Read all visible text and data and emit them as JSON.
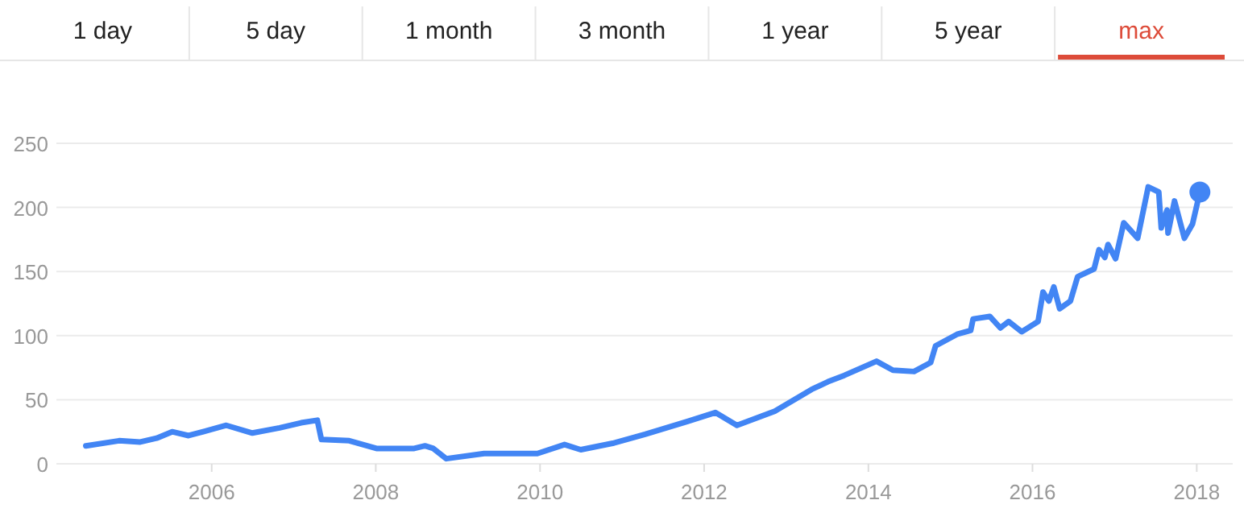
{
  "chart_data": {
    "type": "line",
    "x": [
      "2004-06-20",
      "2004-11-15",
      "2005-02-17",
      "2005-05-01",
      "2005-07-09",
      "2005-09-20",
      "2006-03-07",
      "2006-07-01",
      "2006-10-30",
      "2007-02-03",
      "2007-04-16",
      "2007-05-04",
      "2007-09-05",
      "2008-01-04",
      "2008-06-20",
      "2008-08-07",
      "2008-09-13",
      "2008-11-10",
      "2009-04-27",
      "2009-12-20",
      "2010-04-20",
      "2010-07-01",
      "2010-11-20",
      "2011-04-13",
      "2011-10-19",
      "2012-02-20",
      "2012-05-26",
      "2012-11-10",
      "2013-04-23",
      "2013-07-05",
      "2013-09-16",
      "2014-02-06",
      "2014-04-20",
      "2014-07-23",
      "2014-10-05",
      "2014-10-27",
      "2015-01-30",
      "2015-04-01",
      "2015-04-12",
      "2015-06-25",
      "2015-08-11",
      "2015-09-17",
      "2015-11-14",
      "2016-01-26",
      "2016-02-17",
      "2016-03-14",
      "2016-04-05",
      "2016-05-01",
      "2016-06-18",
      "2016-07-20",
      "2016-10-01",
      "2016-10-23",
      "2016-11-18",
      "2016-12-02",
      "2017-01-05",
      "2017-02-10",
      "2017-04-13",
      "2017-05-30",
      "2017-07-16",
      "2017-07-27",
      "2017-08-22",
      "2017-08-26",
      "2017-09-24",
      "2017-11-07",
      "2017-12-13",
      "2018-01-15"
    ],
    "series": [
      {
        "color": "#4285f4",
        "marker": "none",
        "values": [
          14,
          18,
          17,
          20,
          25,
          22,
          30,
          24,
          28,
          32,
          34,
          19,
          18,
          12,
          12,
          14,
          12,
          4,
          8,
          8,
          15,
          11,
          16,
          23,
          33,
          40,
          30,
          41,
          58,
          64,
          69,
          80,
          73,
          72,
          79,
          92,
          101,
          104,
          113,
          115,
          106,
          111,
          103,
          111,
          134,
          127,
          138,
          121,
          127,
          146,
          152,
          167,
          161,
          171,
          160,
          188,
          176,
          216,
          212,
          184,
          198,
          180,
          205,
          176,
          187,
          212
        ]
      },
      {
        "type": "scatter",
        "color": "#4285f4",
        "marker": "circle",
        "x": [
          "2018-01-15"
        ],
        "values": [
          212
        ]
      }
    ],
    "xlim": [
      "2004-02-10",
      "2018-06-10"
    ],
    "xticks": [
      {
        "value": "2006",
        "label": "2006"
      },
      {
        "value": "2008",
        "label": "2008"
      },
      {
        "value": "2010",
        "label": "2010"
      },
      {
        "value": "2012",
        "label": "2012"
      },
      {
        "value": "2014",
        "label": "2014"
      },
      {
        "value": "2016",
        "label": "2016"
      },
      {
        "value": "2018",
        "label": "2018"
      }
    ],
    "ylim": [
      0,
      250
    ],
    "yticks": [
      0,
      50,
      100,
      150,
      200,
      250
    ],
    "grid": "y",
    "line_style": "solid",
    "annotations": [
      "1 day",
      "5 day",
      "1 month",
      "3 month",
      "1 year",
      "5 year",
      "max"
    ]
  }
}
